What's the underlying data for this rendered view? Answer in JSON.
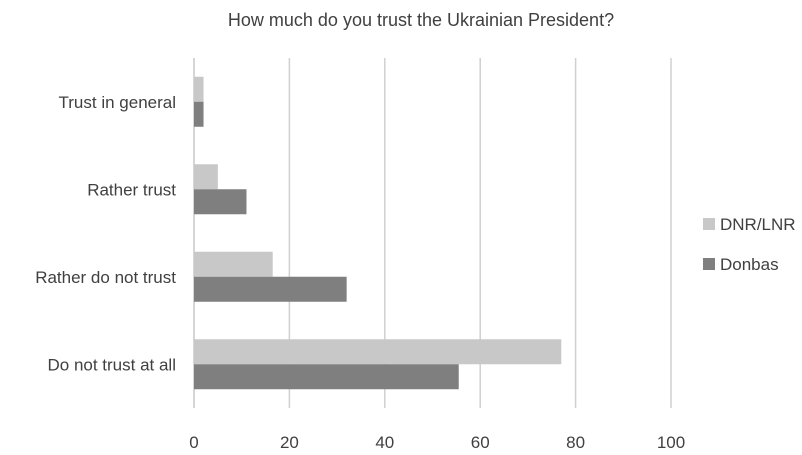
{
  "chart_data": {
    "type": "bar",
    "orientation": "horizontal",
    "title": "How much do you trust the Ukrainian President?",
    "xlabel": "",
    "ylabel": "",
    "xlim": [
      0,
      100
    ],
    "x_ticks": [
      "0",
      "20",
      "40",
      "60",
      "80",
      "100"
    ],
    "categories": [
      "Trust in general",
      "Rather trust",
      "Rather do not trust",
      "Do not trust at all"
    ],
    "series": [
      {
        "name": "DNR/LNR",
        "color": "#c8c8c8",
        "values": [
          2,
          5,
          16.5,
          77
        ]
      },
      {
        "name": "Donbas",
        "color": "#7f7f7f",
        "values": [
          2,
          11,
          32,
          55.5
        ]
      }
    ],
    "grid": "vertical",
    "legend": "right"
  }
}
